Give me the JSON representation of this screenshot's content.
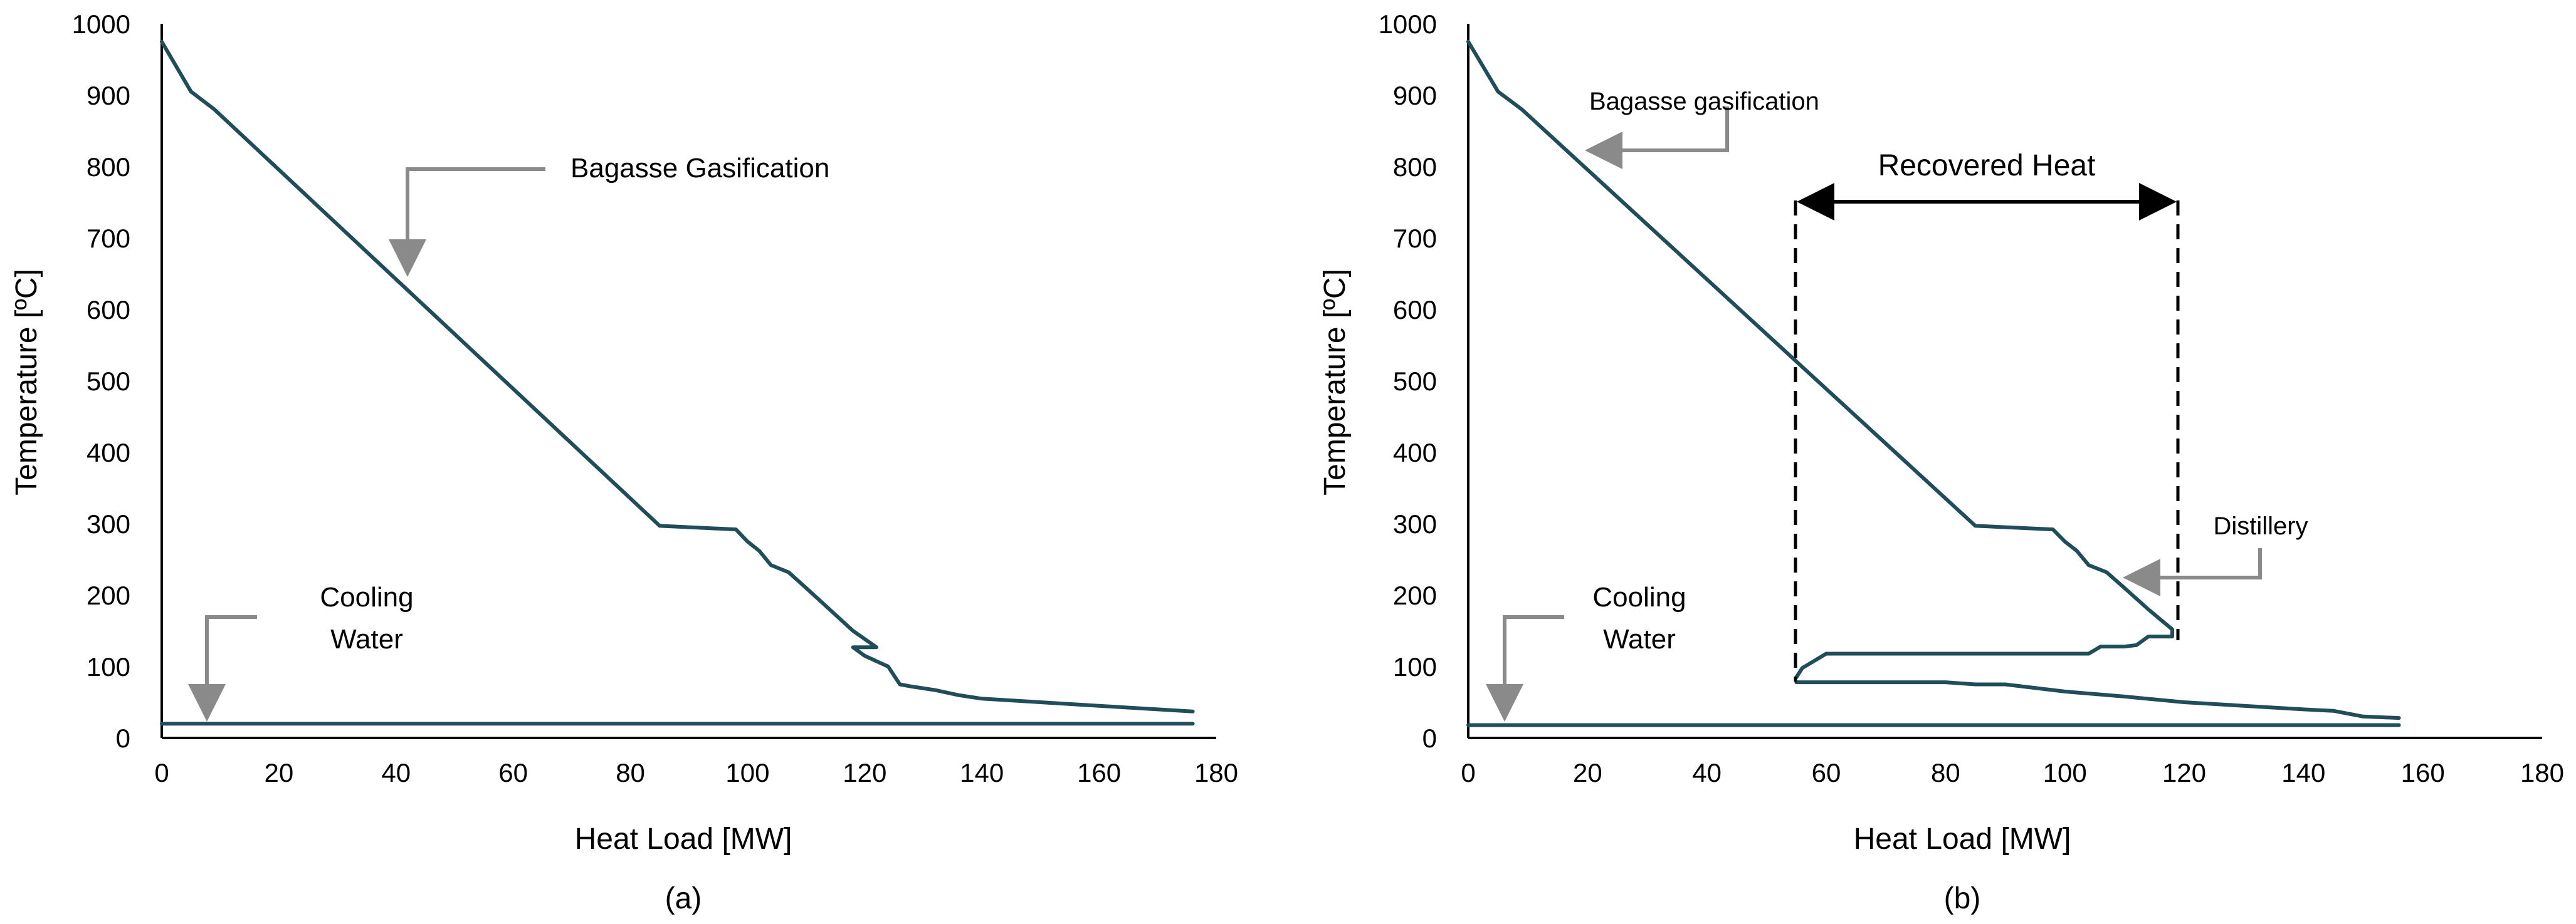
{
  "chart_data": [
    {
      "type": "line",
      "panel_label": "(a)",
      "xlabel": "Heat Load [MW]",
      "ylabel": "Temperature [ºC]",
      "xlim": [
        0,
        180
      ],
      "ylim": [
        0,
        1000
      ],
      "xticks": [
        0,
        20,
        40,
        60,
        80,
        100,
        120,
        140,
        160,
        180
      ],
      "yticks": [
        0,
        100,
        200,
        300,
        400,
        500,
        600,
        700,
        800,
        900,
        1000
      ],
      "line_color": "#1f4e5a",
      "series": [
        {
          "name": "Bagasse Gasification",
          "x": [
            0,
            5,
            9,
            85,
            98,
            100,
            102,
            104,
            107,
            110,
            114,
            118,
            122,
            118,
            120,
            124,
            126,
            128,
            132,
            136,
            140,
            150,
            160,
            170,
            176
          ],
          "y": [
            975,
            905,
            880,
            297,
            292,
            275,
            262,
            242,
            232,
            210,
            180,
            150,
            127,
            127,
            115,
            100,
            75,
            72,
            67,
            60,
            55,
            50,
            45,
            40,
            37
          ]
        },
        {
          "name": "Cooling Water",
          "x": [
            0,
            176
          ],
          "y": [
            20,
            20
          ]
        }
      ],
      "annotations": [
        {
          "text": "Bagasse Gasification"
        },
        {
          "text": "Cooling",
          "text2": "Water"
        }
      ]
    },
    {
      "type": "line",
      "panel_label": "(b)",
      "xlabel": "Heat Load [MW]",
      "ylabel": "Temperature [ºC]",
      "xlim": [
        0,
        180
      ],
      "ylim": [
        0,
        1000
      ],
      "xticks": [
        0,
        20,
        40,
        60,
        80,
        100,
        120,
        140,
        160,
        180
      ],
      "yticks": [
        0,
        100,
        200,
        300,
        400,
        500,
        600,
        700,
        800,
        900,
        1000
      ],
      "line_color": "#1f4e5a",
      "series": [
        {
          "name": "Bagasse gasification",
          "x": [
            0,
            5,
            9,
            85,
            98,
            100,
            102,
            104,
            107,
            110,
            114,
            118,
            118,
            116,
            114,
            112,
            110,
            108,
            106,
            104,
            102,
            100,
            98,
            96,
            94,
            92,
            90,
            88,
            86,
            84,
            82,
            80,
            78,
            76,
            74,
            72,
            70,
            68,
            66,
            64,
            62,
            60,
            58,
            56,
            55
          ],
          "y": [
            975,
            905,
            880,
            297,
            292,
            275,
            262,
            242,
            232,
            210,
            180,
            152,
            142,
            142,
            142,
            130,
            128,
            128,
            128,
            118,
            118,
            118,
            118,
            118,
            118,
            118,
            118,
            118,
            118,
            118,
            118,
            118,
            118,
            118,
            118,
            118,
            118,
            118,
            118,
            118,
            118,
            118,
            108,
            98,
            85
          ]
        },
        {
          "name": "Distillery",
          "x": [
            55,
            60,
            70,
            80,
            85,
            90,
            100,
            110,
            120,
            130,
            140,
            145,
            150,
            156
          ],
          "y": [
            78,
            78,
            78,
            78,
            75,
            75,
            65,
            58,
            50,
            45,
            40,
            38,
            30,
            28
          ]
        },
        {
          "name": "Cooling Water",
          "x": [
            0,
            156
          ],
          "y": [
            18,
            18
          ]
        }
      ],
      "recovered_heat_x": [
        55,
        118
      ],
      "annotations": [
        {
          "text": "Bagasse gasification"
        },
        {
          "text": "Recovered Heat"
        },
        {
          "text": "Distillery"
        },
        {
          "text": "Cooling",
          "text2": "Water"
        }
      ]
    }
  ]
}
